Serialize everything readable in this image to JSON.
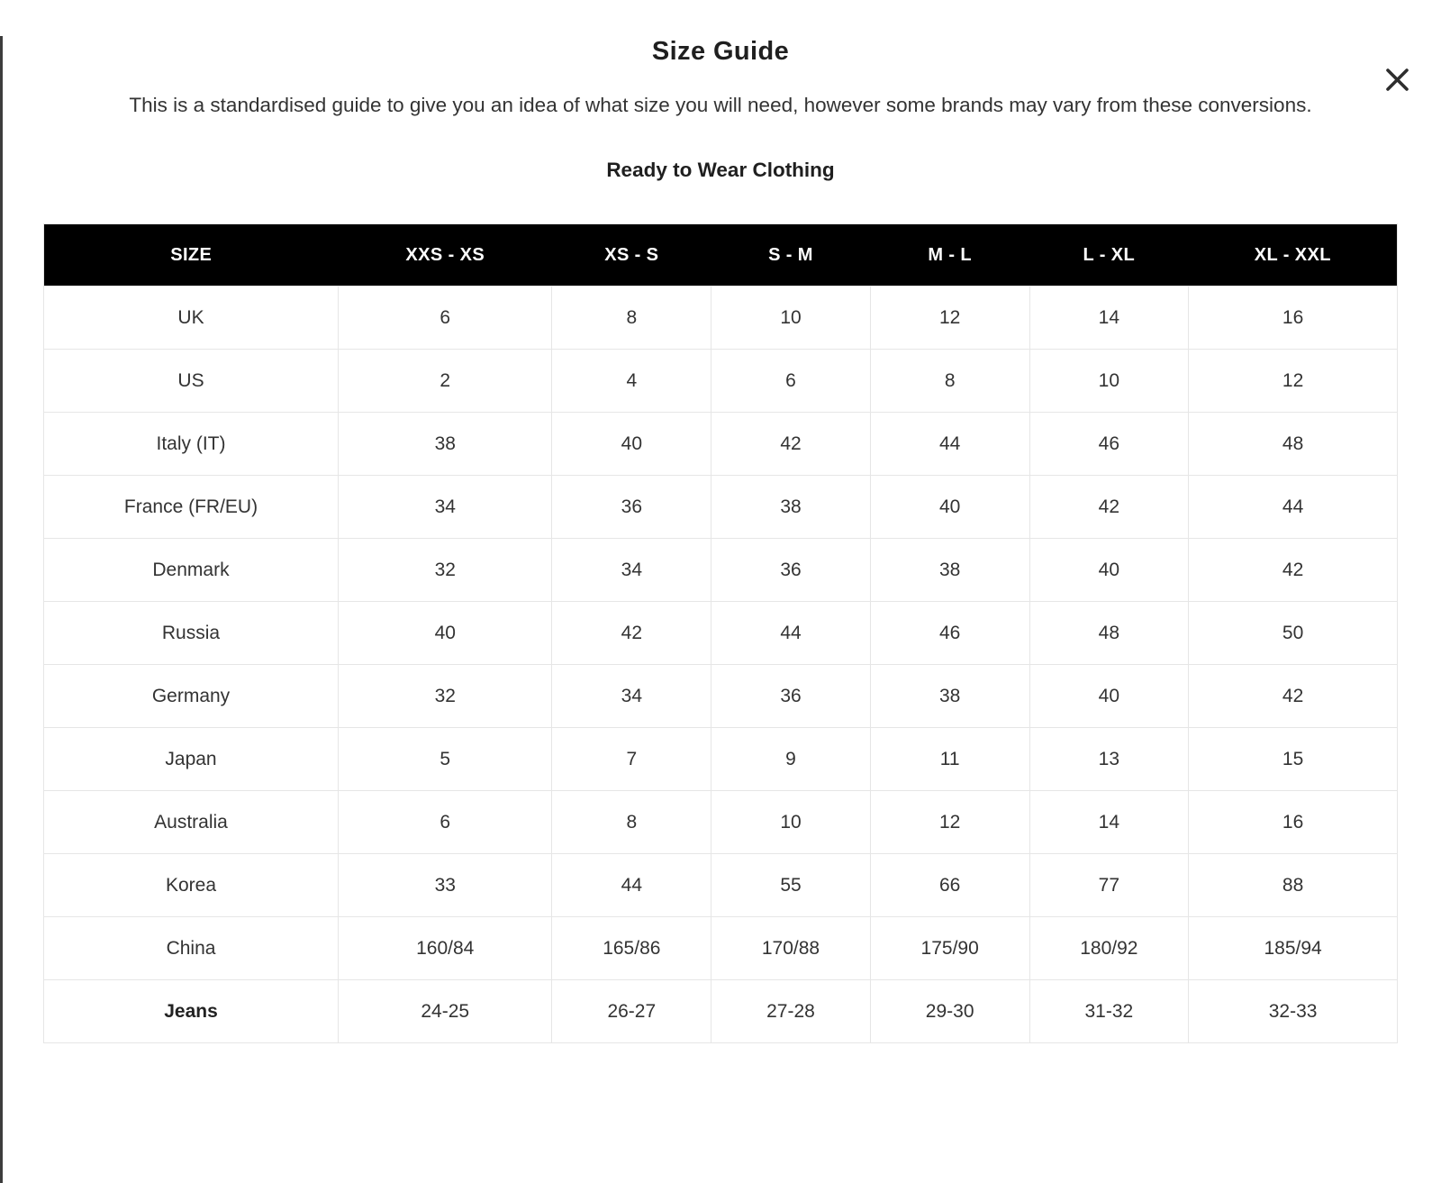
{
  "modal": {
    "title": "Size Guide",
    "description": "This is a standardised guide to give you an idea of what size you will need, however some brands may vary from these conversions.",
    "section_heading": "Ready to Wear Clothing"
  },
  "table": {
    "columns": [
      "SIZE",
      "XXS - XS",
      "XS - S",
      "S - M",
      "M - L",
      "L - XL",
      "XL - XXL"
    ],
    "rows": [
      {
        "label": "UK",
        "bold": false,
        "values": [
          "6",
          "8",
          "10",
          "12",
          "14",
          "16"
        ]
      },
      {
        "label": "US",
        "bold": false,
        "values": [
          "2",
          "4",
          "6",
          "8",
          "10",
          "12"
        ]
      },
      {
        "label": "Italy (IT)",
        "bold": false,
        "values": [
          "38",
          "40",
          "42",
          "44",
          "46",
          "48"
        ]
      },
      {
        "label": "France (FR/EU)",
        "bold": false,
        "values": [
          "34",
          "36",
          "38",
          "40",
          "42",
          "44"
        ]
      },
      {
        "label": "Denmark",
        "bold": false,
        "values": [
          "32",
          "34",
          "36",
          "38",
          "40",
          "42"
        ]
      },
      {
        "label": "Russia",
        "bold": false,
        "values": [
          "40",
          "42",
          "44",
          "46",
          "48",
          "50"
        ]
      },
      {
        "label": "Germany",
        "bold": false,
        "values": [
          "32",
          "34",
          "36",
          "38",
          "40",
          "42"
        ]
      },
      {
        "label": "Japan",
        "bold": false,
        "values": [
          "5",
          "7",
          "9",
          "11",
          "13",
          "15"
        ]
      },
      {
        "label": "Australia",
        "bold": false,
        "values": [
          "6",
          "8",
          "10",
          "12",
          "14",
          "16"
        ]
      },
      {
        "label": "Korea",
        "bold": false,
        "values": [
          "33",
          "44",
          "55",
          "66",
          "77",
          "88"
        ]
      },
      {
        "label": "China",
        "bold": false,
        "values": [
          "160/84",
          "165/86",
          "170/88",
          "175/90",
          "180/92",
          "185/94"
        ]
      },
      {
        "label": "Jeans",
        "bold": true,
        "values": [
          "24-25",
          "26-27",
          "27-28",
          "29-30",
          "31-32",
          "32-33"
        ]
      }
    ]
  },
  "colors": {
    "header_bg": "#000000",
    "header_text": "#ffffff",
    "body_text": "#333333",
    "border": "#e6e6e6",
    "backdrop_edge": "#3d3d3d",
    "close_icon": "#2e2e2e"
  }
}
